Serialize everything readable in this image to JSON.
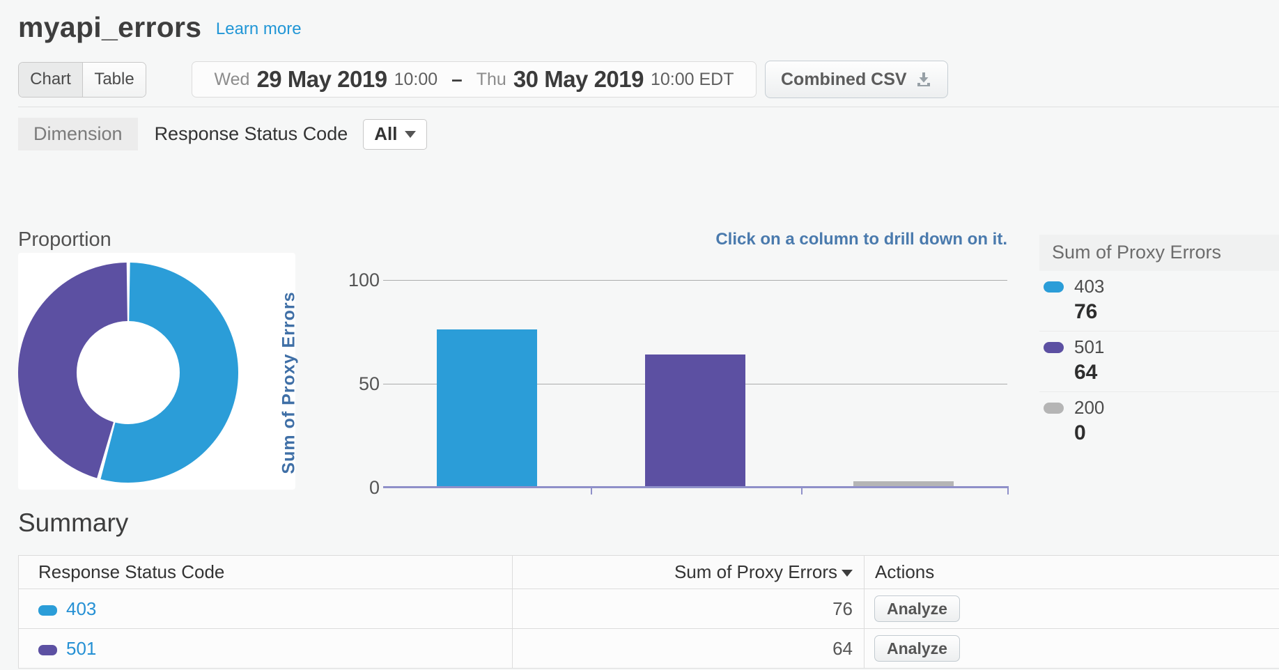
{
  "page": {
    "title": "myapi_errors",
    "learn_more": "Learn more"
  },
  "toolbar": {
    "view_toggle": {
      "chart": "Chart",
      "table": "Table",
      "selected": "Chart"
    },
    "date_range": {
      "start_day": "Wed",
      "start_date": "29 May 2019",
      "start_time": "10:00",
      "separator": "–",
      "end_day": "Thu",
      "end_date": "30 May 2019",
      "end_time": "10:00 EDT"
    },
    "combined_csv_label": "Combined CSV"
  },
  "dimension": {
    "label": "Dimension",
    "name": "Response Status Code",
    "filter_value": "All"
  },
  "charts": {
    "proportion_title": "Proportion",
    "drill_hint": "Click on a column to drill down on it.",
    "y_axis_label": "Sum of Proxy Errors",
    "y_ticks": [
      "100",
      "50",
      "0"
    ]
  },
  "chart_data": [
    {
      "type": "pie",
      "title": "Proportion",
      "donut": true,
      "labels": [
        "403",
        "501"
      ],
      "values": [
        76,
        64
      ],
      "colors": [
        "#2b9dd8",
        "#5c50a2"
      ],
      "legend_position": "none"
    },
    {
      "type": "bar",
      "categories": [
        "403",
        "501",
        "200"
      ],
      "values": [
        76,
        64,
        0
      ],
      "colors": [
        "#2b9dd8",
        "#5c50a2",
        "#b5b5b5"
      ],
      "title": "",
      "xlabel": "",
      "ylabel": "Sum of Proxy Errors",
      "ylim": [
        0,
        100
      ],
      "yticks": [
        0,
        50,
        100
      ],
      "grid": true,
      "legend_position": "right"
    }
  ],
  "legend": {
    "title": "Sum of Proxy Errors",
    "items": [
      {
        "label": "403",
        "value": "76",
        "color": "#2b9dd8"
      },
      {
        "label": "501",
        "value": "64",
        "color": "#5c50a2"
      },
      {
        "label": "200",
        "value": "0",
        "color": "#b5b5b5"
      }
    ]
  },
  "summary": {
    "title": "Summary",
    "columns": [
      "Response Status Code",
      "Sum of Proxy Errors",
      "Actions"
    ],
    "rows": [
      {
        "code": "403",
        "color": "#2b9dd8",
        "value": "76",
        "action": "Analyze"
      },
      {
        "code": "501",
        "color": "#5c50a2",
        "value": "64",
        "action": "Analyze"
      }
    ]
  },
  "colors": {
    "accent_link": "#2196d6",
    "axis_label_blue": "#3f6fa6",
    "axis_baseline": "#8f90c9",
    "series_403": "#2b9dd8",
    "series_501": "#5c50a2",
    "series_200": "#b5b5b5"
  }
}
